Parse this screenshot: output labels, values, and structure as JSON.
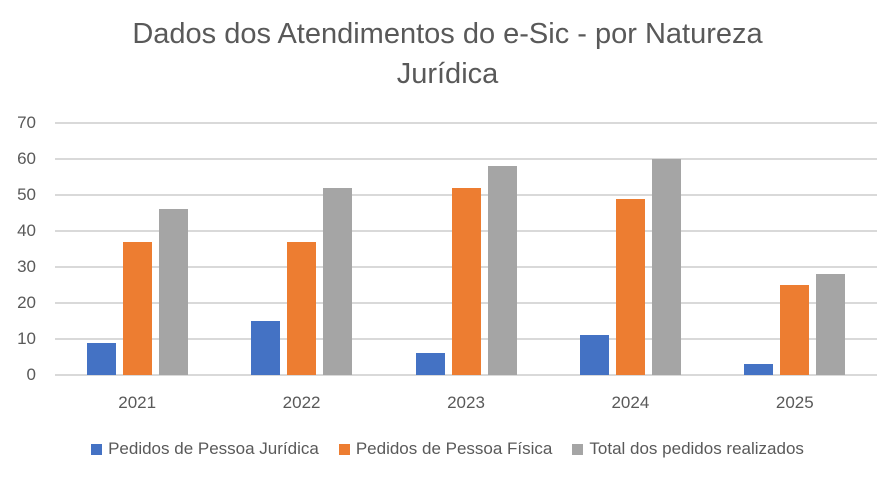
{
  "chart_data": {
    "type": "bar",
    "title": "Dados dos Atendimentos do e-Sic - por Natureza Jurídica",
    "title_lines": [
      "Dados dos Atendimentos do e-Sic - por Natureza",
      "Jurídica"
    ],
    "xlabel": "",
    "ylabel": "",
    "ylim": [
      0,
      70
    ],
    "yticks": [
      0,
      10,
      20,
      30,
      40,
      50,
      60,
      70
    ],
    "grid": true,
    "legend_position": "bottom",
    "categories": [
      "2021",
      "2022",
      "2023",
      "2024",
      "2025"
    ],
    "series": [
      {
        "name": "Pedidos de Pessoa Jurídica",
        "color": "#4472c4",
        "values": [
          9,
          15,
          6,
          11,
          3
        ]
      },
      {
        "name": "Pedidos de Pessoa Física",
        "color": "#ed7d31",
        "values": [
          37,
          37,
          52,
          49,
          25
        ]
      },
      {
        "name": "Total dos pedidos realizados",
        "color": "#a5a5a5",
        "values": [
          46,
          52,
          58,
          60,
          28
        ]
      }
    ]
  }
}
